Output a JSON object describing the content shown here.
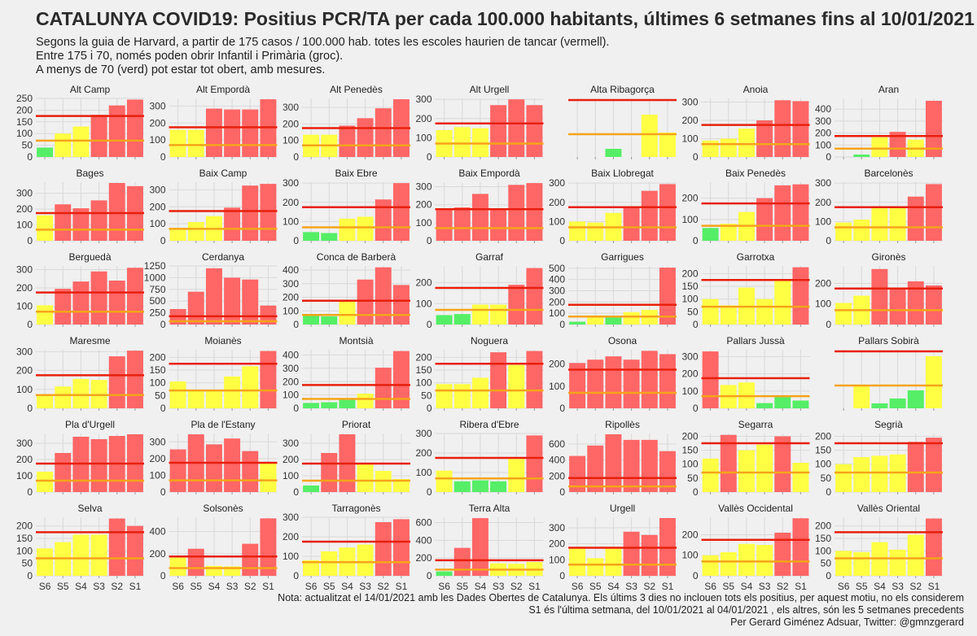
{
  "header": {
    "title": "CATALUNYA COVID19: Positius PCR/TA per cada 100.000 habitants, últimes 6 setmanes fins al 10/01/2021",
    "subtitle_lines": [
      "Segons la guia de Harvard, a partir de 175 casos / 100.000 hab. totes les escoles haurien de tancar (vermell).",
      "Entre 175 i 70, només poden obrir Infantil i Primària (groc).",
      "A menys de 70 (verd) pot estar tot obert, amb mesures."
    ]
  },
  "footer": {
    "lines": [
      "Nota: actualitzat el 14/01/2021  amb les Dades Obertes de Catalunya. Els últims 3 dies no inclouen tots els positius, per aquest motiu, no els considerem",
      "S1 és l'última setmana, del 10/01/2021 al 04/01/2021 , els altres, són les 5 setmanes precedents",
      "Per Gerard Giménez Adsuar, Twitter: @gmnzgerard"
    ]
  },
  "colors": {
    "red": "#ff6666",
    "yellow": "#ffff44",
    "green": "#55ee66",
    "red_line": "#e8200c",
    "orange_line": "#f5a41a",
    "grid": "#d9d9d9",
    "background": "#f0f0f0"
  },
  "chart_data": {
    "type": "bar",
    "layout": "small-multiples",
    "categories": [
      "S6",
      "S5",
      "S4",
      "S3",
      "S2",
      "S1"
    ],
    "thresholds": {
      "red": 175,
      "orange": 70
    },
    "color_rule": {
      "green": "< 70",
      "yellow": "70 - 175",
      "red": "> 175"
    },
    "panels": [
      {
        "name": "Alt Camp",
        "values": [
          40,
          100,
          130,
          180,
          220,
          245
        ],
        "ylim": [
          0,
          250
        ],
        "ticks": [
          0,
          50,
          100,
          150,
          200,
          250
        ]
      },
      {
        "name": "Alt Empordà",
        "values": [
          160,
          160,
          285,
          280,
          280,
          340
        ],
        "ylim": [
          0,
          345
        ],
        "ticks": [
          0,
          100,
          200,
          300
        ]
      },
      {
        "name": "Alt Penedès",
        "values": [
          135,
          135,
          190,
          235,
          295,
          350
        ],
        "ylim": [
          0,
          355
        ],
        "ticks": [
          0,
          100,
          200,
          300
        ]
      },
      {
        "name": "Alt Urgell",
        "values": [
          140,
          155,
          150,
          270,
          300,
          270
        ],
        "ylim": [
          0,
          305
        ],
        "ticks": [
          0,
          100,
          200,
          300
        ]
      },
      {
        "name": "Alta Ribagorça",
        "values": [
          0,
          0,
          25,
          0,
          130,
          75
        ],
        "ylim": [
          0,
          180
        ],
        "ticks": []
      },
      {
        "name": "Anoia",
        "values": [
          90,
          100,
          155,
          200,
          310,
          305
        ],
        "ylim": [
          0,
          320
        ],
        "ticks": [
          0,
          100,
          200,
          300
        ]
      },
      {
        "name": "Aran",
        "values": [
          0,
          20,
          165,
          210,
          145,
          470
        ],
        "ylim": [
          0,
          490
        ],
        "ticks": [
          0,
          100,
          200,
          300,
          400
        ]
      },
      {
        "name": "Bages",
        "values": [
          160,
          230,
          205,
          255,
          365,
          345
        ],
        "ylim": [
          0,
          370
        ],
        "ticks": [
          0,
          100,
          200,
          300
        ]
      },
      {
        "name": "Baix Camp",
        "values": [
          75,
          110,
          145,
          195,
          325,
          335
        ],
        "ylim": [
          0,
          345
        ],
        "ticks": [
          0,
          100,
          200,
          300
        ]
      },
      {
        "name": "Baix Ebre",
        "values": [
          45,
          40,
          115,
          125,
          215,
          300
        ],
        "ylim": [
          0,
          305
        ],
        "ticks": [
          0,
          100,
          200,
          300
        ]
      },
      {
        "name": "Baix Empordà",
        "values": [
          180,
          185,
          260,
          180,
          310,
          320
        ],
        "ylim": [
          0,
          325
        ],
        "ticks": [
          0,
          100,
          200,
          300
        ]
      },
      {
        "name": "Baix Llobregat",
        "values": [
          100,
          95,
          145,
          180,
          260,
          295
        ],
        "ylim": [
          0,
          305
        ],
        "ticks": [
          0,
          100,
          200,
          300
        ]
      },
      {
        "name": "Baix Penedès",
        "values": [
          60,
          80,
          135,
          200,
          260,
          265
        ],
        "ylim": [
          0,
          275
        ],
        "ticks": [
          0,
          100,
          200
        ]
      },
      {
        "name": "Barcelonès",
        "values": [
          95,
          110,
          175,
          175,
          230,
          295
        ],
        "ylim": [
          0,
          305
        ],
        "ticks": [
          0,
          100,
          200,
          300
        ]
      },
      {
        "name": "Berguedà",
        "values": [
          105,
          195,
          235,
          290,
          240,
          310
        ],
        "ylim": [
          0,
          320
        ],
        "ticks": [
          0,
          100,
          200,
          300
        ]
      },
      {
        "name": "Cerdanya",
        "values": [
          330,
          700,
          1200,
          1000,
          960,
          405
        ],
        "ylim": [
          0,
          1250
        ],
        "ticks": [
          0,
          250,
          500,
          750,
          1000,
          1250
        ]
      },
      {
        "name": "Conca de Barberà",
        "values": [
          65,
          60,
          170,
          330,
          420,
          290
        ],
        "ylim": [
          0,
          430
        ],
        "ticks": [
          0,
          100,
          200,
          300,
          400
        ]
      },
      {
        "name": "Garraf",
        "values": [
          45,
          50,
          95,
          95,
          190,
          270
        ],
        "ylim": [
          0,
          280
        ],
        "ticks": [
          0,
          100,
          200
        ]
      },
      {
        "name": "Garrigues",
        "values": [
          25,
          80,
          65,
          110,
          130,
          505
        ],
        "ylim": [
          0,
          520
        ],
        "ticks": [
          0,
          100,
          200,
          300,
          400,
          500
        ]
      },
      {
        "name": "Garrotxa",
        "values": [
          100,
          75,
          145,
          100,
          175,
          225
        ],
        "ylim": [
          0,
          230
        ],
        "ticks": [
          0,
          50,
          100,
          150,
          200
        ]
      },
      {
        "name": "Gironès",
        "values": [
          105,
          140,
          270,
          180,
          210,
          190
        ],
        "ylim": [
          0,
          285
        ],
        "ticks": [
          0,
          100,
          200
        ]
      },
      {
        "name": "Maresme",
        "values": [
          70,
          115,
          155,
          150,
          275,
          305
        ],
        "ylim": [
          0,
          310
        ],
        "ticks": [
          0,
          100,
          200,
          300
        ]
      },
      {
        "name": "Moianès",
        "values": [
          105,
          70,
          70,
          125,
          165,
          225
        ],
        "ylim": [
          0,
          230
        ],
        "ticks": [
          0,
          50,
          100,
          150,
          200
        ]
      },
      {
        "name": "Montsià",
        "values": [
          40,
          45,
          65,
          110,
          305,
          430
        ],
        "ylim": [
          0,
          440
        ],
        "ticks": [
          0,
          100,
          200,
          300,
          400
        ]
      },
      {
        "name": "Noguera",
        "values": [
          95,
          95,
          120,
          220,
          170,
          225
        ],
        "ylim": [
          0,
          230
        ],
        "ticks": [
          0,
          50,
          100,
          150,
          200
        ]
      },
      {
        "name": "Osona",
        "values": [
          205,
          220,
          235,
          220,
          260,
          245
        ],
        "ylim": [
          0,
          265
        ],
        "ticks": [
          0,
          100,
          200
        ]
      },
      {
        "name": "Pallars Jussà",
        "values": [
          330,
          135,
          150,
          30,
          65,
          45
        ],
        "ylim": [
          0,
          340
        ],
        "ticks": [
          0,
          100,
          200,
          300
        ]
      },
      {
        "name": "Pallars Sobirà",
        "values": [
          0,
          70,
          15,
          30,
          55,
          160
        ],
        "ylim": [
          0,
          180
        ],
        "ticks": []
      },
      {
        "name": "Pla d'Urgell",
        "values": [
          125,
          240,
          340,
          325,
          345,
          355
        ],
        "ylim": [
          0,
          360
        ],
        "ticks": [
          0,
          100,
          200,
          300
        ]
      },
      {
        "name": "Pla de l'Estany",
        "values": [
          255,
          345,
          285,
          320,
          245,
          175
        ],
        "ylim": [
          0,
          350
        ],
        "ticks": [
          0,
          100,
          200,
          300
        ]
      },
      {
        "name": "Priorat",
        "values": [
          40,
          240,
          355,
          175,
          130,
          80
        ],
        "ylim": [
          0,
          360
        ],
        "ticks": [
          0,
          100,
          200,
          300
        ]
      },
      {
        "name": "Ribera d'Ebre",
        "values": [
          110,
          55,
          60,
          55,
          170,
          290
        ],
        "ylim": [
          0,
          300
        ],
        "ticks": [
          0,
          100,
          200,
          300
        ]
      },
      {
        "name": "Ripollès",
        "values": [
          450,
          580,
          720,
          650,
          650,
          510
        ],
        "ylim": [
          0,
          730
        ],
        "ticks": [
          0,
          200,
          400,
          600
        ]
      },
      {
        "name": "Segarra",
        "values": [
          120,
          205,
          150,
          170,
          200,
          105
        ],
        "ylim": [
          0,
          210
        ],
        "ticks": [
          0,
          50,
          100,
          150,
          200
        ]
      },
      {
        "name": "Segrià",
        "values": [
          100,
          125,
          130,
          135,
          180,
          195
        ],
        "ylim": [
          0,
          210
        ],
        "ticks": [
          0,
          50,
          100,
          150,
          200
        ]
      },
      {
        "name": "Selva",
        "values": [
          110,
          135,
          165,
          165,
          230,
          200
        ],
        "ylim": [
          0,
          235
        ],
        "ticks": [
          0,
          50,
          100,
          150,
          200
        ]
      },
      {
        "name": "Solsonès",
        "values": [
          165,
          245,
          90,
          85,
          290,
          520
        ],
        "ylim": [
          0,
          530
        ],
        "ticks": [
          0,
          200,
          400
        ]
      },
      {
        "name": "Tarragonès",
        "values": [
          80,
          125,
          145,
          160,
          275,
          290
        ],
        "ylim": [
          0,
          300
        ],
        "ticks": [
          0,
          100,
          200,
          300
        ]
      },
      {
        "name": "Terra Alta",
        "values": [
          50,
          315,
          650,
          140,
          135,
          155
        ],
        "ylim": [
          0,
          660
        ],
        "ticks": [
          0,
          200,
          400,
          600
        ]
      },
      {
        "name": "Urgell",
        "values": [
          170,
          110,
          170,
          275,
          255,
          360
        ],
        "ylim": [
          0,
          365
        ],
        "ticks": [
          0,
          100,
          200,
          300
        ]
      },
      {
        "name": "Vallès Occidental",
        "values": [
          100,
          115,
          155,
          150,
          210,
          280
        ],
        "ylim": [
          0,
          285
        ],
        "ticks": [
          0,
          100,
          200
        ]
      },
      {
        "name": "Vallès Oriental",
        "values": [
          100,
          95,
          135,
          105,
          165,
          230
        ],
        "ylim": [
          0,
          235
        ],
        "ticks": [
          0,
          50,
          100,
          150,
          200
        ]
      }
    ]
  }
}
